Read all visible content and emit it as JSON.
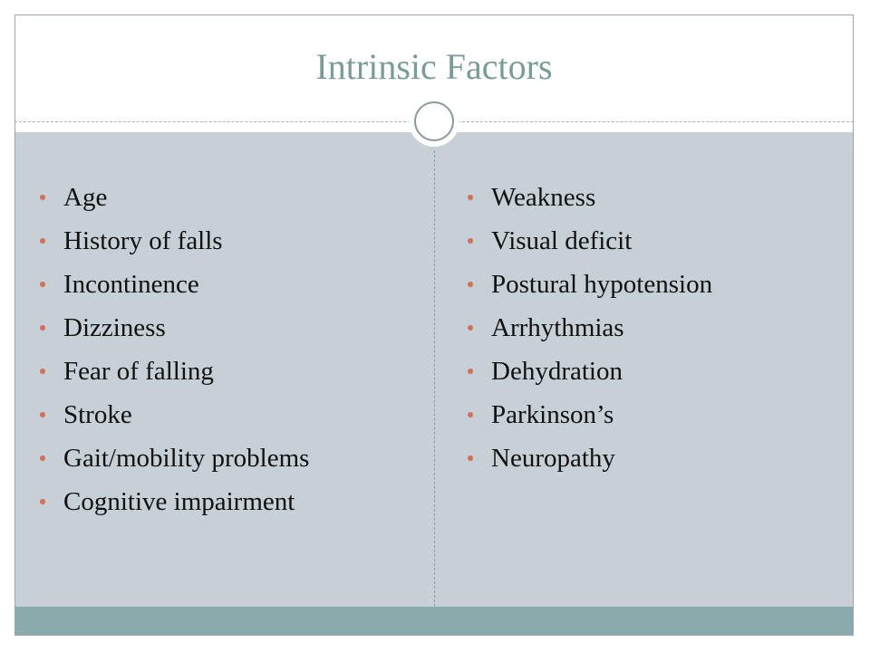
{
  "slide": {
    "title": "Intrinsic Factors",
    "left_items": [
      "Age",
      "History of falls",
      "Incontinence",
      "Dizziness",
      "Fear of falling",
      "Stroke",
      "Gait/mobility problems",
      "Cognitive impairment"
    ],
    "right_items": [
      "Weakness",
      "Visual deficit",
      "Postural hypotension",
      "Arrhythmias",
      "Dehydration",
      "Parkinson’s",
      "Neuropathy"
    ]
  },
  "colors": {
    "title": "#7a9c98",
    "panel": "#c6d0d6",
    "footer_band": "#8aabab",
    "bullet": "#d3705a"
  }
}
